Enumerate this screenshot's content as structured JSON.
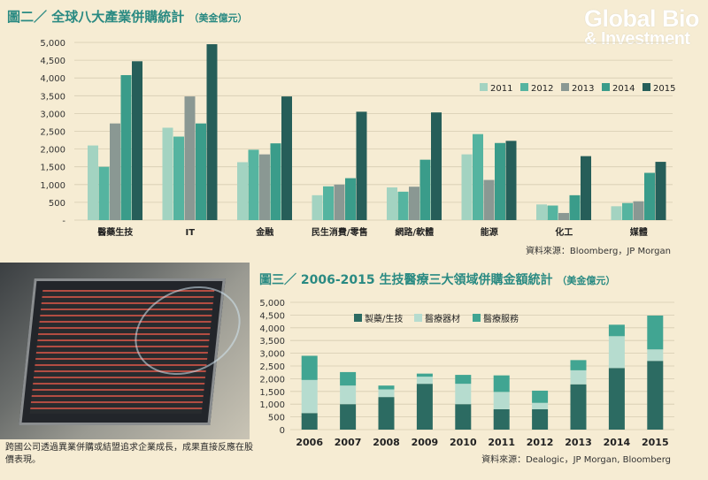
{
  "logo": {
    "line1": "Global Bio",
    "line2": "& Investment"
  },
  "photo_caption": "跨國公司透過異業併購或結盟追求企業成長，成果直接反應在股價表現。",
  "chart_data": [
    {
      "type": "bar",
      "title": "圖二／ 全球八大產業併購統計",
      "unit": "（美金億元）",
      "source": "資料來源：Bloomberg，JP Morgan",
      "ylim": [
        0,
        5000
      ],
      "yticks": [
        "5,000",
        "4,500",
        "4,000",
        "3,500",
        "3,000",
        "2,500",
        "2,000",
        "1,500",
        "1,000",
        "500",
        "-"
      ],
      "legend_position": "right",
      "categories": [
        "醫藥生技",
        "IT",
        "金融",
        "民生消費/零售",
        "網路/軟體",
        "能源",
        "化工",
        "媒體"
      ],
      "series": [
        {
          "name": "2011",
          "color": "#a3d3c1",
          "values": [
            2100,
            2600,
            1630,
            700,
            920,
            1850,
            440,
            390
          ]
        },
        {
          "name": "2012",
          "color": "#55b4a0",
          "values": [
            1500,
            2350,
            1980,
            950,
            800,
            2420,
            410,
            480
          ]
        },
        {
          "name": "2013",
          "color": "#8a9893",
          "values": [
            2720,
            3480,
            1850,
            1000,
            940,
            1130,
            200,
            530
          ]
        },
        {
          "name": "2014",
          "color": "#3a9c8a",
          "values": [
            4080,
            2720,
            2160,
            1180,
            1700,
            2170,
            700,
            1330
          ]
        },
        {
          "name": "2015",
          "color": "#265e59",
          "values": [
            4470,
            4950,
            3480,
            3050,
            3030,
            2230,
            1800,
            1640
          ]
        }
      ]
    },
    {
      "type": "bar",
      "stacked": true,
      "title": "圖三／ 2006-2015 生技醫療三大領域併購金額統計",
      "unit": "（美金億元）",
      "source": "資料來源：Dealogic，JP Morgan, Bloomberg",
      "ylim": [
        0,
        5000
      ],
      "yticks": [
        "5,000",
        "4,500",
        "4,000",
        "3,500",
        "3,000",
        "2,500",
        "2,000",
        "1,500",
        "1,000",
        "500",
        "0"
      ],
      "legend_position": "top",
      "categories": [
        "2006",
        "2007",
        "2008",
        "2009",
        "2010",
        "2011",
        "2012",
        "2013",
        "2014",
        "2015"
      ],
      "series": [
        {
          "name": "製藥/生技",
          "color": "#2c6b62",
          "values": [
            650,
            1000,
            1280,
            1800,
            1000,
            800,
            800,
            1780,
            2420,
            2700
          ]
        },
        {
          "name": "醫療器材",
          "color": "#b6dccf",
          "values": [
            1300,
            730,
            300,
            280,
            800,
            680,
            250,
            550,
            1250,
            450
          ]
        },
        {
          "name": "醫療服務",
          "color": "#41a592",
          "values": [
            950,
            530,
            150,
            120,
            350,
            650,
            480,
            400,
            450,
            1330
          ]
        }
      ]
    }
  ]
}
